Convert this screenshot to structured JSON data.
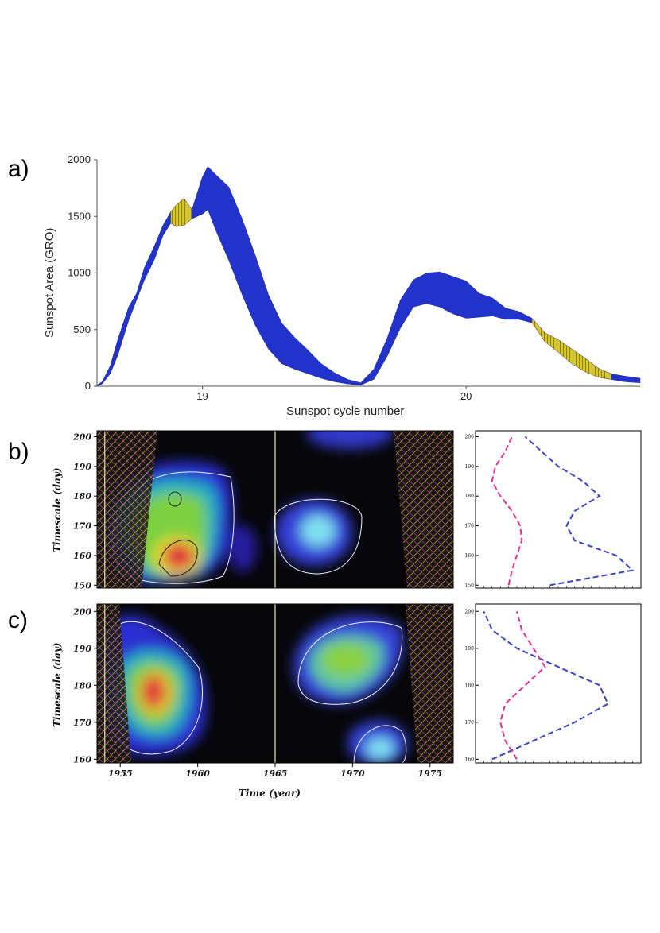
{
  "panel_labels": {
    "a": "a)",
    "b": "b)",
    "c": "c)"
  },
  "colors": {
    "area_band": "#2233cc",
    "significant_band": "#d8c820",
    "curve_global": "#3344cc",
    "curve_other": "#e0309a",
    "coi_hatch": "#cc33aa",
    "coi_hatch_alt": "#b8b830",
    "contour": "#f0f0f0",
    "marker_line": "#e8e8a0"
  },
  "chart_data": [
    {
      "id": "a",
      "type": "area",
      "title": "",
      "xlabel": "Sunspot cycle number",
      "ylabel": "Sunspot Area (GRO)",
      "xlim": [
        18.6,
        20.66
      ],
      "ylim": [
        0,
        2000
      ],
      "x_ticks": [
        19,
        20
      ],
      "x_tick_labels": [
        "19",
        "20"
      ],
      "y_ticks": [
        0,
        500,
        1000,
        1500,
        2000
      ],
      "y_tick_labels": [
        "0",
        "500",
        "1000",
        "1500",
        "2000"
      ],
      "x": [
        18.6,
        18.62,
        18.65,
        18.68,
        18.72,
        18.75,
        18.78,
        18.82,
        18.85,
        18.88,
        18.9,
        18.93,
        18.96,
        19.0,
        19.02,
        19.05,
        19.1,
        19.15,
        19.2,
        19.25,
        19.3,
        19.35,
        19.4,
        19.45,
        19.5,
        19.55,
        19.6,
        19.65,
        19.7,
        19.75,
        19.8,
        19.85,
        19.9,
        19.95,
        20.0,
        20.05,
        20.1,
        20.15,
        20.2,
        20.25,
        20.3,
        20.35,
        20.4,
        20.45,
        20.5,
        20.55,
        20.6,
        20.66
      ],
      "upper": [
        10,
        40,
        180,
        420,
        700,
        820,
        1050,
        1250,
        1420,
        1540,
        1600,
        1660,
        1560,
        1850,
        1940,
        1870,
        1760,
        1480,
        1160,
        810,
        560,
        430,
        320,
        200,
        120,
        60,
        30,
        150,
        420,
        760,
        940,
        1000,
        1010,
        970,
        930,
        820,
        780,
        690,
        660,
        600,
        470,
        410,
        330,
        250,
        160,
        110,
        90,
        70
      ],
      "lower": [
        0,
        20,
        110,
        280,
        580,
        760,
        940,
        1130,
        1330,
        1440,
        1410,
        1420,
        1480,
        1520,
        1560,
        1380,
        1110,
        810,
        540,
        330,
        200,
        150,
        110,
        70,
        40,
        20,
        10,
        60,
        260,
        510,
        700,
        730,
        700,
        640,
        600,
        610,
        620,
        590,
        590,
        560,
        390,
        300,
        200,
        130,
        80,
        60,
        40,
        30
      ],
      "significant_ranges": [
        [
          18.86,
          18.98
        ],
        [
          20.25,
          20.58
        ]
      ]
    },
    {
      "id": "b",
      "type": "heatmap",
      "xlabel": "",
      "ylabel": "Timescale (day)",
      "xlim": [
        1953.5,
        1976.5
      ],
      "ylim": [
        149,
        202
      ],
      "y_ticks": [
        150,
        160,
        170,
        180,
        190,
        200
      ],
      "y_tick_labels": [
        "150",
        "160",
        "170",
        "180",
        "190",
        "200"
      ],
      "markers": [
        1954,
        1965
      ],
      "side_plot": {
        "y_ticks": [
          150,
          160,
          170,
          180,
          190,
          200
        ],
        "y_tick_labels": [
          "150",
          "160",
          "170",
          "180",
          "190",
          "200"
        ],
        "global": {
          "y": [
            150,
            155,
            160,
            165,
            170,
            175,
            180,
            185,
            190,
            195,
            200
          ],
          "x": [
            0.45,
            0.95,
            0.85,
            0.6,
            0.55,
            0.6,
            0.75,
            0.65,
            0.5,
            0.4,
            0.3
          ]
        },
        "other": {
          "y": [
            150,
            155,
            160,
            165,
            170,
            175,
            180,
            185,
            190,
            195,
            200
          ],
          "x": [
            0.2,
            0.22,
            0.25,
            0.28,
            0.27,
            0.22,
            0.15,
            0.1,
            0.12,
            0.18,
            0.22
          ]
        }
      }
    },
    {
      "id": "c",
      "type": "heatmap",
      "xlabel": "Time (year)",
      "ylabel": "Timescale (day)",
      "xlim": [
        1953.5,
        1976.5
      ],
      "ylim": [
        159,
        202
      ],
      "x_ticks": [
        1955,
        1960,
        1965,
        1970,
        1975
      ],
      "x_tick_labels": [
        "1955",
        "1960",
        "1965",
        "1970",
        "1975"
      ],
      "y_ticks": [
        160,
        170,
        180,
        190,
        200
      ],
      "y_tick_labels": [
        "160",
        "170",
        "180",
        "190",
        "200"
      ],
      "markers": [
        1954,
        1965
      ],
      "side_plot": {
        "y_ticks": [
          160,
          170,
          180,
          190,
          200
        ],
        "y_tick_labels": [
          "160",
          "170",
          "180",
          "190",
          "200"
        ],
        "global": {
          "y": [
            160,
            165,
            170,
            175,
            180,
            185,
            190,
            195,
            200
          ],
          "x": [
            0.1,
            0.35,
            0.6,
            0.8,
            0.75,
            0.5,
            0.25,
            0.1,
            0.05
          ]
        },
        "other": {
          "y": [
            160,
            165,
            170,
            175,
            180,
            185,
            190,
            195,
            200
          ],
          "x": [
            0.25,
            0.18,
            0.15,
            0.18,
            0.3,
            0.42,
            0.35,
            0.28,
            0.25
          ]
        }
      }
    }
  ]
}
